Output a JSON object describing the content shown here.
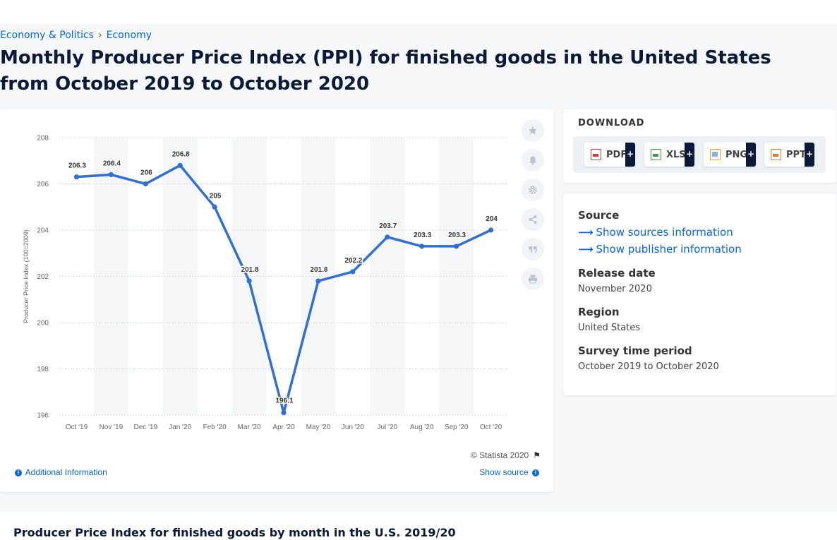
{
  "breadcrumb": {
    "items": [
      "Economy & Politics",
      "Economy"
    ],
    "separator": "›"
  },
  "page_title": "Monthly Producer Price Index (PPI) for finished goods in the United States from October 2019 to October 2020",
  "chart_footer": {
    "copyright": "© Statista 2020",
    "additional_info": "Additional Information",
    "show_source": "Show source"
  },
  "tool_icons": [
    "star-icon",
    "bell-icon",
    "gear-icon",
    "share-icon",
    "quote-icon",
    "print-icon"
  ],
  "download": {
    "title": "DOWNLOAD",
    "formats": [
      {
        "label": "PDF",
        "color": "#d93a3a",
        "plus": "+"
      },
      {
        "label": "XLS",
        "color": "#3e9a46",
        "plus": "+"
      },
      {
        "label": "PNG",
        "color": "#e2a625",
        "plus": "+"
      },
      {
        "label": "PPT",
        "color": "#e0782e",
        "plus": "+"
      }
    ]
  },
  "meta": {
    "source_label": "Source",
    "show_sources": "Show sources information",
    "show_publisher": "Show publisher information",
    "release_label": "Release date",
    "release_value": "November 2020",
    "region_label": "Region",
    "region_value": "United States",
    "survey_label": "Survey time period",
    "survey_value": "October 2019 to October 2020"
  },
  "bottom_title": "Producer Price Index for finished goods by month in the U.S. 2019/20",
  "colors": {
    "accent": "#0666e5",
    "line": "#2f6fd6",
    "title": "#0b1a38"
  },
  "chart_data": {
    "type": "line",
    "categories": [
      "Oct '19",
      "Nov '19",
      "Dec '19",
      "Jan '20",
      "Feb '20",
      "Mar '20",
      "Apr '20",
      "May '20",
      "Jun '20",
      "Jul '20",
      "Aug '20",
      "Sep '20",
      "Oct '20"
    ],
    "values": [
      206.3,
      206.4,
      206,
      206.8,
      205,
      201.8,
      196.1,
      201.8,
      202.2,
      203.7,
      203.3,
      203.3,
      204
    ],
    "value_labels": [
      "206.3",
      "206.4",
      "206",
      "206.8",
      "205",
      "201.8",
      "196.1",
      "201.8",
      "202.2",
      "203.7",
      "203.3",
      "203.3",
      "204"
    ],
    "ylabel": "Producer Price Index (100=2009)",
    "ylim": [
      196,
      208
    ],
    "yticks": [
      "196",
      "198",
      "200",
      "202",
      "204",
      "206",
      "208"
    ],
    "grid": true,
    "alternating_bands": true
  }
}
